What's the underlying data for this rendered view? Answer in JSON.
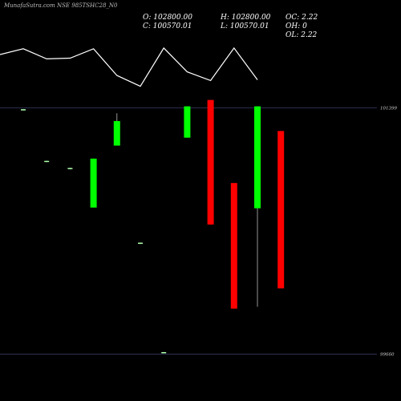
{
  "chart_data": {
    "type": "candlestick",
    "title": "MunafaSutra.com NSE 985TSHC28_N0",
    "ohlc_readout": {
      "open": "O: 102800.00",
      "high": "H: 102800.00",
      "change": "OC: 2.22",
      "close": "C: 100570.01",
      "low": "L: 100570.01",
      "oh": "OH: 0",
      "ol": "OL: 2.22"
    },
    "price_axis": {
      "labels": [
        "101399",
        "99660"
      ],
      "values": [
        101399,
        99660
      ]
    },
    "price_range": [
      99630,
      101435
    ],
    "line_range": [
      0,
      100
    ],
    "line_series": [
      80,
      88,
      74,
      75,
      88,
      51,
      36,
      89,
      56,
      44,
      89,
      45
    ],
    "candles": [
      {
        "open": 101389,
        "close": 101380,
        "high": 101389,
        "low": 101380,
        "color": "#00ff00"
      },
      {
        "open": 101025,
        "close": 101015,
        "high": 101025,
        "low": 101015,
        "color": "#00ff00"
      },
      {
        "open": 100975,
        "close": 100965,
        "high": 100975,
        "low": 100965,
        "color": "#00ff00"
      },
      {
        "open": 100695,
        "close": 101040,
        "high": 101040,
        "low": 100695,
        "color": "#00ff00"
      },
      {
        "open": 101132,
        "close": 101305,
        "high": 101360,
        "low": 101132,
        "color": "#00ff00"
      },
      {
        "open": 100448,
        "close": 100438,
        "high": 100448,
        "low": 100438,
        "color": "#00ff00"
      },
      {
        "open": 99676,
        "close": 99666,
        "high": 99676,
        "low": 99666,
        "color": "#00ff00"
      },
      {
        "open": 101188,
        "close": 101409,
        "high": 101409,
        "low": 101188,
        "color": "#00ff00"
      },
      {
        "open": 101454,
        "close": 100575,
        "high": 101454,
        "low": 100575,
        "color": "#ff0000"
      },
      {
        "open": 100868,
        "close": 99982,
        "high": 100868,
        "low": 99982,
        "color": "#ff0000"
      },
      {
        "open": 101409,
        "close": 100690,
        "high": 101409,
        "low": 99995,
        "color": "#00ff00"
      },
      {
        "open": 101235,
        "close": 100125,
        "high": 101235,
        "low": 100125,
        "color": "#ff0000"
      }
    ]
  }
}
